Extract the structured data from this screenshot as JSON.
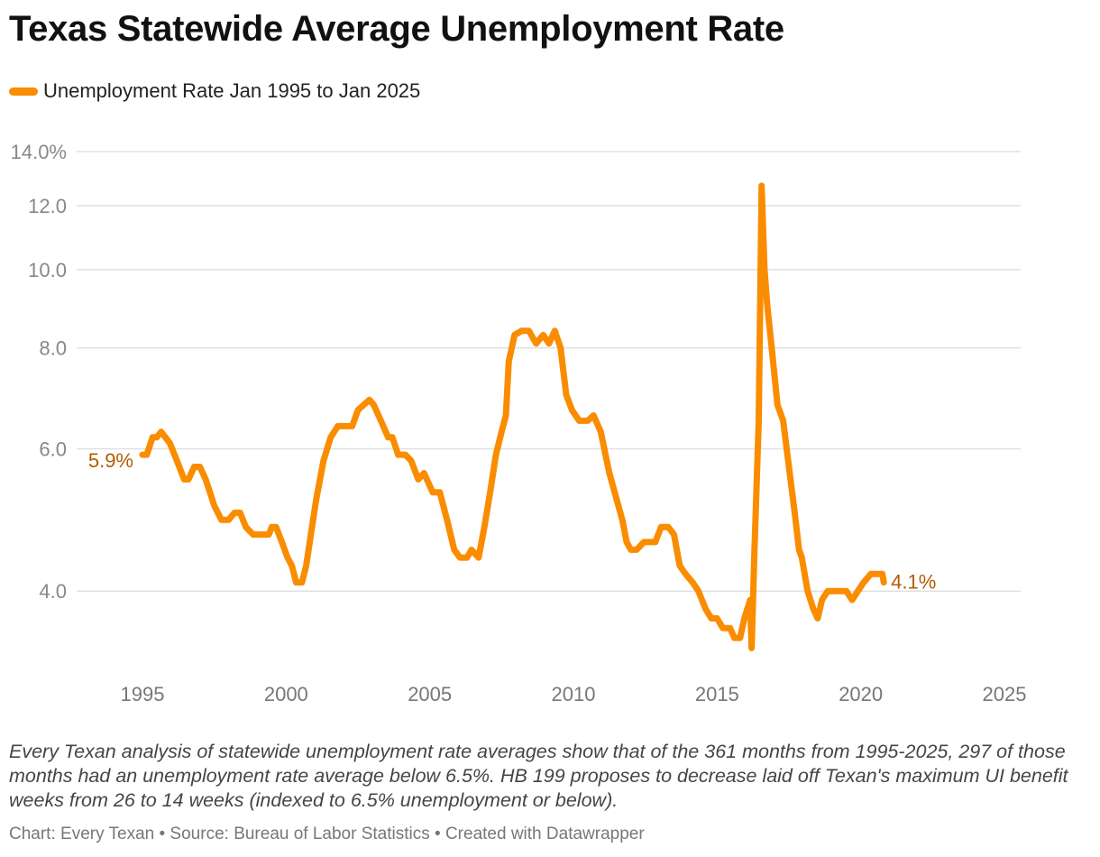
{
  "title": "Texas Statewide Average Unemployment Rate",
  "legend": {
    "label": "Unemployment Rate Jan 1995 to Jan 2025",
    "color": "#fa8c00"
  },
  "chart_data": {
    "type": "line",
    "title": "Texas Statewide Average Unemployment Rate",
    "series_name": "Unemployment Rate Jan 1995 to Jan 2025",
    "yscale": "log",
    "ylim": [
      3.2,
      14.0
    ],
    "y_ticks": [
      {
        "value": 14.0,
        "label": "14.0%"
      },
      {
        "value": 12.0,
        "label": "12.0"
      },
      {
        "value": 10.0,
        "label": "10.0"
      },
      {
        "value": 8.0,
        "label": "8.0"
      },
      {
        "value": 6.0,
        "label": "6.0"
      },
      {
        "value": 4.0,
        "label": "4.0"
      }
    ],
    "xlim": [
      1995.0,
      2025.0
    ],
    "x_ticks": [
      {
        "value": 1995,
        "label": "1995"
      },
      {
        "value": 2000,
        "label": "2000"
      },
      {
        "value": 2005,
        "label": "2005"
      },
      {
        "value": 2010,
        "label": "2010"
      },
      {
        "value": 2015,
        "label": "2015"
      },
      {
        "value": 2020,
        "label": "2020"
      },
      {
        "value": 2025,
        "label": "2025"
      }
    ],
    "points": [
      [
        1995.0,
        5.9
      ],
      [
        1995.15,
        5.9
      ],
      [
        1995.35,
        6.2
      ],
      [
        1995.5,
        6.2
      ],
      [
        1995.65,
        6.3
      ],
      [
        1995.8,
        6.2
      ],
      [
        1995.95,
        6.1
      ],
      [
        1996.2,
        5.8
      ],
      [
        1996.45,
        5.5
      ],
      [
        1996.6,
        5.5
      ],
      [
        1996.8,
        5.7
      ],
      [
        1997.0,
        5.7
      ],
      [
        1997.2,
        5.5
      ],
      [
        1997.5,
        5.1
      ],
      [
        1997.75,
        4.9
      ],
      [
        1998.0,
        4.9
      ],
      [
        1998.2,
        5.0
      ],
      [
        1998.4,
        5.0
      ],
      [
        1998.6,
        4.8
      ],
      [
        1998.85,
        4.7
      ],
      [
        1999.1,
        4.7
      ],
      [
        1999.4,
        4.7
      ],
      [
        1999.5,
        4.8
      ],
      [
        1999.65,
        4.8
      ],
      [
        1999.85,
        4.6
      ],
      [
        2000.05,
        4.4
      ],
      [
        2000.2,
        4.3
      ],
      [
        2000.35,
        4.1
      ],
      [
        2000.55,
        4.1
      ],
      [
        2000.7,
        4.3
      ],
      [
        2000.9,
        4.8
      ],
      [
        2001.05,
        5.2
      ],
      [
        2001.3,
        5.8
      ],
      [
        2001.55,
        6.2
      ],
      [
        2001.8,
        6.4
      ],
      [
        2002.05,
        6.4
      ],
      [
        2002.3,
        6.4
      ],
      [
        2002.5,
        6.7
      ],
      [
        2002.7,
        6.8
      ],
      [
        2002.9,
        6.9
      ],
      [
        2003.05,
        6.8
      ],
      [
        2003.3,
        6.5
      ],
      [
        2003.55,
        6.2
      ],
      [
        2003.7,
        6.2
      ],
      [
        2003.9,
        5.9
      ],
      [
        2004.15,
        5.9
      ],
      [
        2004.35,
        5.8
      ],
      [
        2004.6,
        5.5
      ],
      [
        2004.8,
        5.6
      ],
      [
        2005.1,
        5.3
      ],
      [
        2005.35,
        5.3
      ],
      [
        2005.6,
        4.9
      ],
      [
        2005.85,
        4.5
      ],
      [
        2006.05,
        4.4
      ],
      [
        2006.3,
        4.4
      ],
      [
        2006.45,
        4.5
      ],
      [
        2006.7,
        4.4
      ],
      [
        2006.9,
        4.8
      ],
      [
        2007.1,
        5.3
      ],
      [
        2007.3,
        5.9
      ],
      [
        2007.5,
        6.3
      ],
      [
        2007.65,
        6.6
      ],
      [
        2007.75,
        7.7
      ],
      [
        2007.95,
        8.3
      ],
      [
        2008.2,
        8.4
      ],
      [
        2008.45,
        8.4
      ],
      [
        2008.7,
        8.1
      ],
      [
        2008.95,
        8.3
      ],
      [
        2009.15,
        8.1
      ],
      [
        2009.35,
        8.4
      ],
      [
        2009.55,
        8.0
      ],
      [
        2009.75,
        7.0
      ],
      [
        2009.95,
        6.7
      ],
      [
        2010.2,
        6.5
      ],
      [
        2010.5,
        6.5
      ],
      [
        2010.7,
        6.6
      ],
      [
        2010.95,
        6.3
      ],
      [
        2011.25,
        5.6
      ],
      [
        2011.5,
        5.2
      ],
      [
        2011.7,
        4.9
      ],
      [
        2011.85,
        4.6
      ],
      [
        2012.0,
        4.5
      ],
      [
        2012.2,
        4.5
      ],
      [
        2012.45,
        4.6
      ],
      [
        2012.65,
        4.6
      ],
      [
        2012.85,
        4.6
      ],
      [
        2013.05,
        4.8
      ],
      [
        2013.3,
        4.8
      ],
      [
        2013.5,
        4.7
      ],
      [
        2013.7,
        4.3
      ],
      [
        2013.9,
        4.2
      ],
      [
        2014.15,
        4.1
      ],
      [
        2014.35,
        4.0
      ],
      [
        2014.6,
        3.8
      ],
      [
        2014.8,
        3.7
      ],
      [
        2015.0,
        3.7
      ],
      [
        2015.2,
        3.6
      ],
      [
        2015.45,
        3.6
      ],
      [
        2015.6,
        3.5
      ],
      [
        2015.8,
        3.5
      ],
      [
        2015.95,
        3.7
      ],
      [
        2016.05,
        3.8
      ],
      [
        2016.15,
        3.9
      ],
      [
        2016.2,
        3.4
      ],
      [
        2016.3,
        4.5
      ],
      [
        2016.45,
        6.5
      ],
      [
        2016.55,
        12.7
      ],
      [
        2016.65,
        10.0
      ],
      [
        2016.75,
        9.0
      ],
      [
        2016.9,
        8.0
      ],
      [
        2017.1,
        6.8
      ],
      [
        2017.3,
        6.5
      ],
      [
        2017.5,
        5.7
      ],
      [
        2017.7,
        5.0
      ],
      [
        2017.85,
        4.5
      ],
      [
        2017.95,
        4.4
      ],
      [
        2018.15,
        4.0
      ],
      [
        2018.35,
        3.8
      ],
      [
        2018.5,
        3.7
      ],
      [
        2018.65,
        3.9
      ],
      [
        2018.85,
        4.0
      ],
      [
        2019.1,
        4.0
      ],
      [
        2019.3,
        4.0
      ],
      [
        2019.5,
        4.0
      ],
      [
        2019.7,
        3.9
      ],
      [
        2019.9,
        4.0
      ],
      [
        2020.1,
        4.1
      ],
      [
        2020.35,
        4.2
      ],
      [
        2020.6,
        4.2
      ],
      [
        2020.75,
        4.2
      ],
      [
        2020.8,
        4.1
      ]
    ],
    "start_label": "5.9%",
    "end_label": "4.1%"
  },
  "note": "Every Texan analysis of statewide unemployment rate averages show that of the 361 months from 1995-2025, 297 of those months had an unemployment rate average below 6.5%. HB 199 proposes to decrease laid off Texan's maximum UI benefit weeks from 26 to 14 weeks (indexed to 6.5% unemployment or below).",
  "footer": "Chart: Every Texan  • Source: Bureau of Labor Statistics • Created with Datawrapper",
  "colors": {
    "line": "#fa8c00",
    "label": "#b35c00",
    "grid": "#e0e0e0",
    "axis_text": "#888888"
  }
}
